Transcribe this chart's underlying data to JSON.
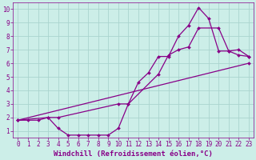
{
  "background_color": "#cceee8",
  "grid_color": "#aad4ce",
  "line_color": "#880088",
  "xlabel": "Windchill (Refroidissement éolien,°C)",
  "xlim": [
    -0.5,
    23.5
  ],
  "ylim": [
    0.5,
    10.5
  ],
  "xticks": [
    0,
    1,
    2,
    3,
    4,
    5,
    6,
    7,
    8,
    9,
    10,
    11,
    12,
    13,
    14,
    15,
    16,
    17,
    18,
    19,
    20,
    21,
    22,
    23
  ],
  "yticks": [
    1,
    2,
    3,
    4,
    5,
    6,
    7,
    8,
    9,
    10
  ],
  "line1_x": [
    0,
    1,
    2,
    3,
    4,
    5,
    6,
    7,
    8,
    9,
    10,
    11,
    12,
    13,
    14,
    15,
    16,
    17,
    18,
    19,
    20,
    21,
    22,
    23
  ],
  "line1_y": [
    1.8,
    1.8,
    1.8,
    2.0,
    1.2,
    0.7,
    0.7,
    0.7,
    0.7,
    0.7,
    1.2,
    3.0,
    4.6,
    5.3,
    6.5,
    6.5,
    8.0,
    8.8,
    10.1,
    9.3,
    6.9,
    6.9,
    6.6,
    6.5
  ],
  "line2_x": [
    0,
    3,
    4,
    10,
    11,
    14,
    15,
    16,
    17,
    18,
    20,
    21,
    22,
    23
  ],
  "line2_y": [
    1.8,
    2.0,
    2.0,
    3.0,
    3.0,
    5.2,
    6.6,
    7.0,
    7.2,
    8.6,
    8.6,
    6.9,
    7.0,
    6.5
  ],
  "line3_x": [
    0,
    23
  ],
  "line3_y": [
    1.8,
    6.0
  ],
  "markersize": 2.0,
  "linewidth": 0.9,
  "xlabel_fontsize": 6.5,
  "tick_fontsize": 5.5
}
